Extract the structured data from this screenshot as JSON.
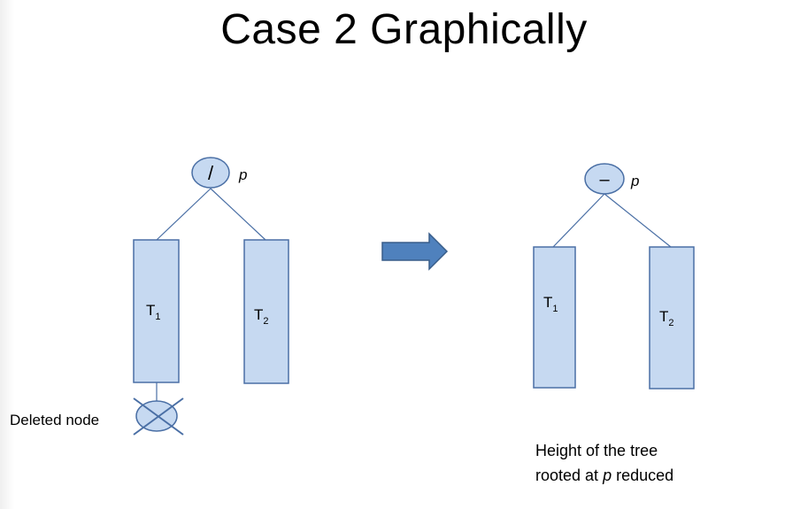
{
  "slide": {
    "title": "Case 2 Graphically"
  },
  "colors": {
    "node_fill": "#c6d9f1",
    "node_stroke": "#4a6fa5",
    "edge_stroke": "#4a6fa5",
    "arrow_fill": "#4f81bd",
    "arrow_stroke": "#385d8a",
    "cross_stroke": "#4a6fa5"
  },
  "before": {
    "root": {
      "symbol": "/",
      "label": "p"
    },
    "subtrees": [
      {
        "letter": "T",
        "subscript": "1"
      },
      {
        "letter": "T",
        "subscript": "2"
      }
    ],
    "deleted_label": "Deleted node"
  },
  "after": {
    "root": {
      "symbol": "–",
      "label": "p"
    },
    "subtrees": [
      {
        "letter": "T",
        "subscript": "1"
      },
      {
        "letter": "T",
        "subscript": "2"
      }
    ],
    "caption": {
      "line1": "Height of the tree",
      "line2_prefix": "rooted at ",
      "line2_var": "p",
      "line2_suffix": " reduced"
    }
  },
  "transition": {
    "icon": "right-arrow-icon"
  }
}
